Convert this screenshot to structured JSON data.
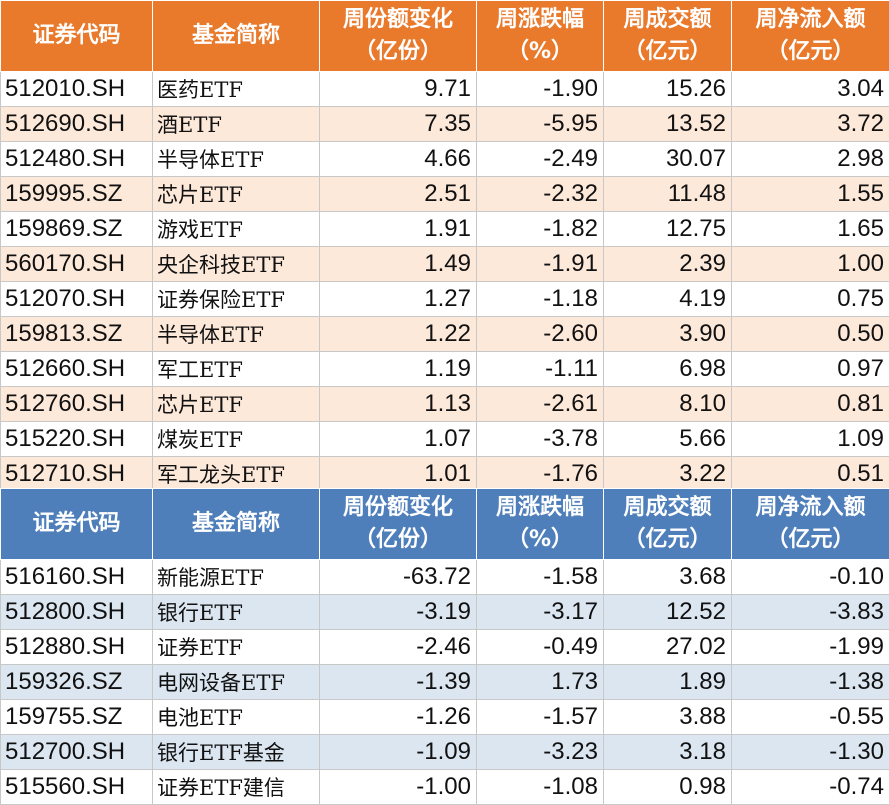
{
  "inflow_table": {
    "headers": {
      "code": "证券代码",
      "name": "基金简称",
      "share_change": [
        "周份额变化",
        "（亿份）"
      ],
      "weekly_change": [
        "周涨跌幅",
        "（%）"
      ],
      "turnover": [
        "周成交额",
        "（亿元）"
      ],
      "net_inflow": [
        "周净流入额",
        "（亿元）"
      ]
    },
    "rows": [
      {
        "code": "512010.SH",
        "name": "医药ETF",
        "share_change": "9.71",
        "weekly_change": "-1.90",
        "turnover": "15.26",
        "net_inflow": "3.04"
      },
      {
        "code": "512690.SH",
        "name": "酒ETF",
        "share_change": "7.35",
        "weekly_change": "-5.95",
        "turnover": "13.52",
        "net_inflow": "3.72"
      },
      {
        "code": "512480.SH",
        "name": "半导体ETF",
        "share_change": "4.66",
        "weekly_change": "-2.49",
        "turnover": "30.07",
        "net_inflow": "2.98"
      },
      {
        "code": "159995.SZ",
        "name": "芯片ETF",
        "share_change": "2.51",
        "weekly_change": "-2.32",
        "turnover": "11.48",
        "net_inflow": "1.55"
      },
      {
        "code": "159869.SZ",
        "name": "游戏ETF",
        "share_change": "1.91",
        "weekly_change": "-1.82",
        "turnover": "12.75",
        "net_inflow": "1.65"
      },
      {
        "code": "560170.SH",
        "name": "央企科技ETF",
        "share_change": "1.49",
        "weekly_change": "-1.91",
        "turnover": "2.39",
        "net_inflow": "1.00"
      },
      {
        "code": "512070.SH",
        "name": "证券保险ETF",
        "share_change": "1.27",
        "weekly_change": "-1.18",
        "turnover": "4.19",
        "net_inflow": "0.75"
      },
      {
        "code": "159813.SZ",
        "name": "半导体ETF",
        "share_change": "1.22",
        "weekly_change": "-2.60",
        "turnover": "3.90",
        "net_inflow": "0.50"
      },
      {
        "code": "512660.SH",
        "name": "军工ETF",
        "share_change": "1.19",
        "weekly_change": "-1.11",
        "turnover": "6.98",
        "net_inflow": "0.97"
      },
      {
        "code": "512760.SH",
        "name": "芯片ETF",
        "share_change": "1.13",
        "weekly_change": "-2.61",
        "turnover": "8.10",
        "net_inflow": "0.81"
      },
      {
        "code": "515220.SH",
        "name": "煤炭ETF",
        "share_change": "1.07",
        "weekly_change": "-3.78",
        "turnover": "5.66",
        "net_inflow": "1.09"
      },
      {
        "code": "512710.SH",
        "name": "军工龙头ETF",
        "share_change": "1.01",
        "weekly_change": "-1.76",
        "turnover": "3.22",
        "net_inflow": "0.51"
      }
    ]
  },
  "outflow_table": {
    "headers": {
      "code": "证券代码",
      "name": "基金简称",
      "share_change": [
        "周份额变化",
        "（亿份）"
      ],
      "weekly_change": [
        "周涨跌幅",
        "（%）"
      ],
      "turnover": [
        "周成交额",
        "（亿元）"
      ],
      "net_inflow": [
        "周净流入额",
        "（亿元）"
      ]
    },
    "rows": [
      {
        "code": "516160.SH",
        "name": "新能源ETF",
        "share_change": "-63.72",
        "weekly_change": "-1.58",
        "turnover": "3.68",
        "net_inflow": "-0.10"
      },
      {
        "code": "512800.SH",
        "name": "银行ETF",
        "share_change": "-3.19",
        "weekly_change": "-3.17",
        "turnover": "12.52",
        "net_inflow": "-3.83"
      },
      {
        "code": "512880.SH",
        "name": "证券ETF",
        "share_change": "-2.46",
        "weekly_change": "-0.49",
        "turnover": "27.02",
        "net_inflow": "-1.99"
      },
      {
        "code": "159326.SZ",
        "name": "电网设备ETF",
        "share_change": "-1.39",
        "weekly_change": "1.73",
        "turnover": "1.89",
        "net_inflow": "-1.38"
      },
      {
        "code": "159755.SZ",
        "name": "电池ETF",
        "share_change": "-1.26",
        "weekly_change": "-1.57",
        "turnover": "3.88",
        "net_inflow": "-0.55"
      },
      {
        "code": "512700.SH",
        "name": "银行ETF基金",
        "share_change": "-1.09",
        "weekly_change": "-3.23",
        "turnover": "3.18",
        "net_inflow": "-1.30"
      },
      {
        "code": "515560.SH",
        "name": "证券ETF建信",
        "share_change": "-1.00",
        "weekly_change": "-1.08",
        "turnover": "0.98",
        "net_inflow": "-0.74"
      }
    ]
  },
  "colors": {
    "inflow_header": "#e9792b",
    "inflow_stripe": "#fde9da",
    "outflow_header": "#4f7fbb",
    "outflow_stripe": "#dce6f1"
  }
}
